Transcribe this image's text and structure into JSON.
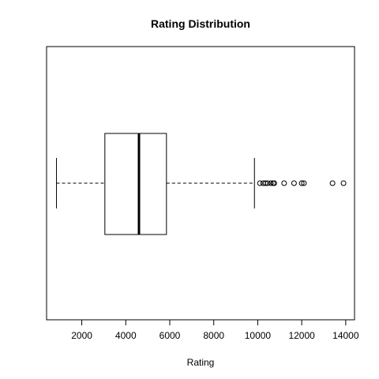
{
  "chart_data": {
    "type": "boxplot",
    "orientation": "horizontal",
    "title": "Rating Distribution",
    "xlabel": "Rating",
    "xlim": [
      400,
      14400
    ],
    "xticks": [
      2000,
      4000,
      6000,
      8000,
      10000,
      12000,
      14000
    ],
    "grid": false,
    "series": [
      {
        "whisker_low": 850,
        "q1": 3050,
        "median": 4600,
        "q3": 5850,
        "whisker_high": 9850,
        "outliers": [
          10100,
          10250,
          10350,
          10450,
          10600,
          10700,
          10750,
          11200,
          11650,
          12000,
          12100,
          13400,
          13900
        ]
      }
    ]
  }
}
